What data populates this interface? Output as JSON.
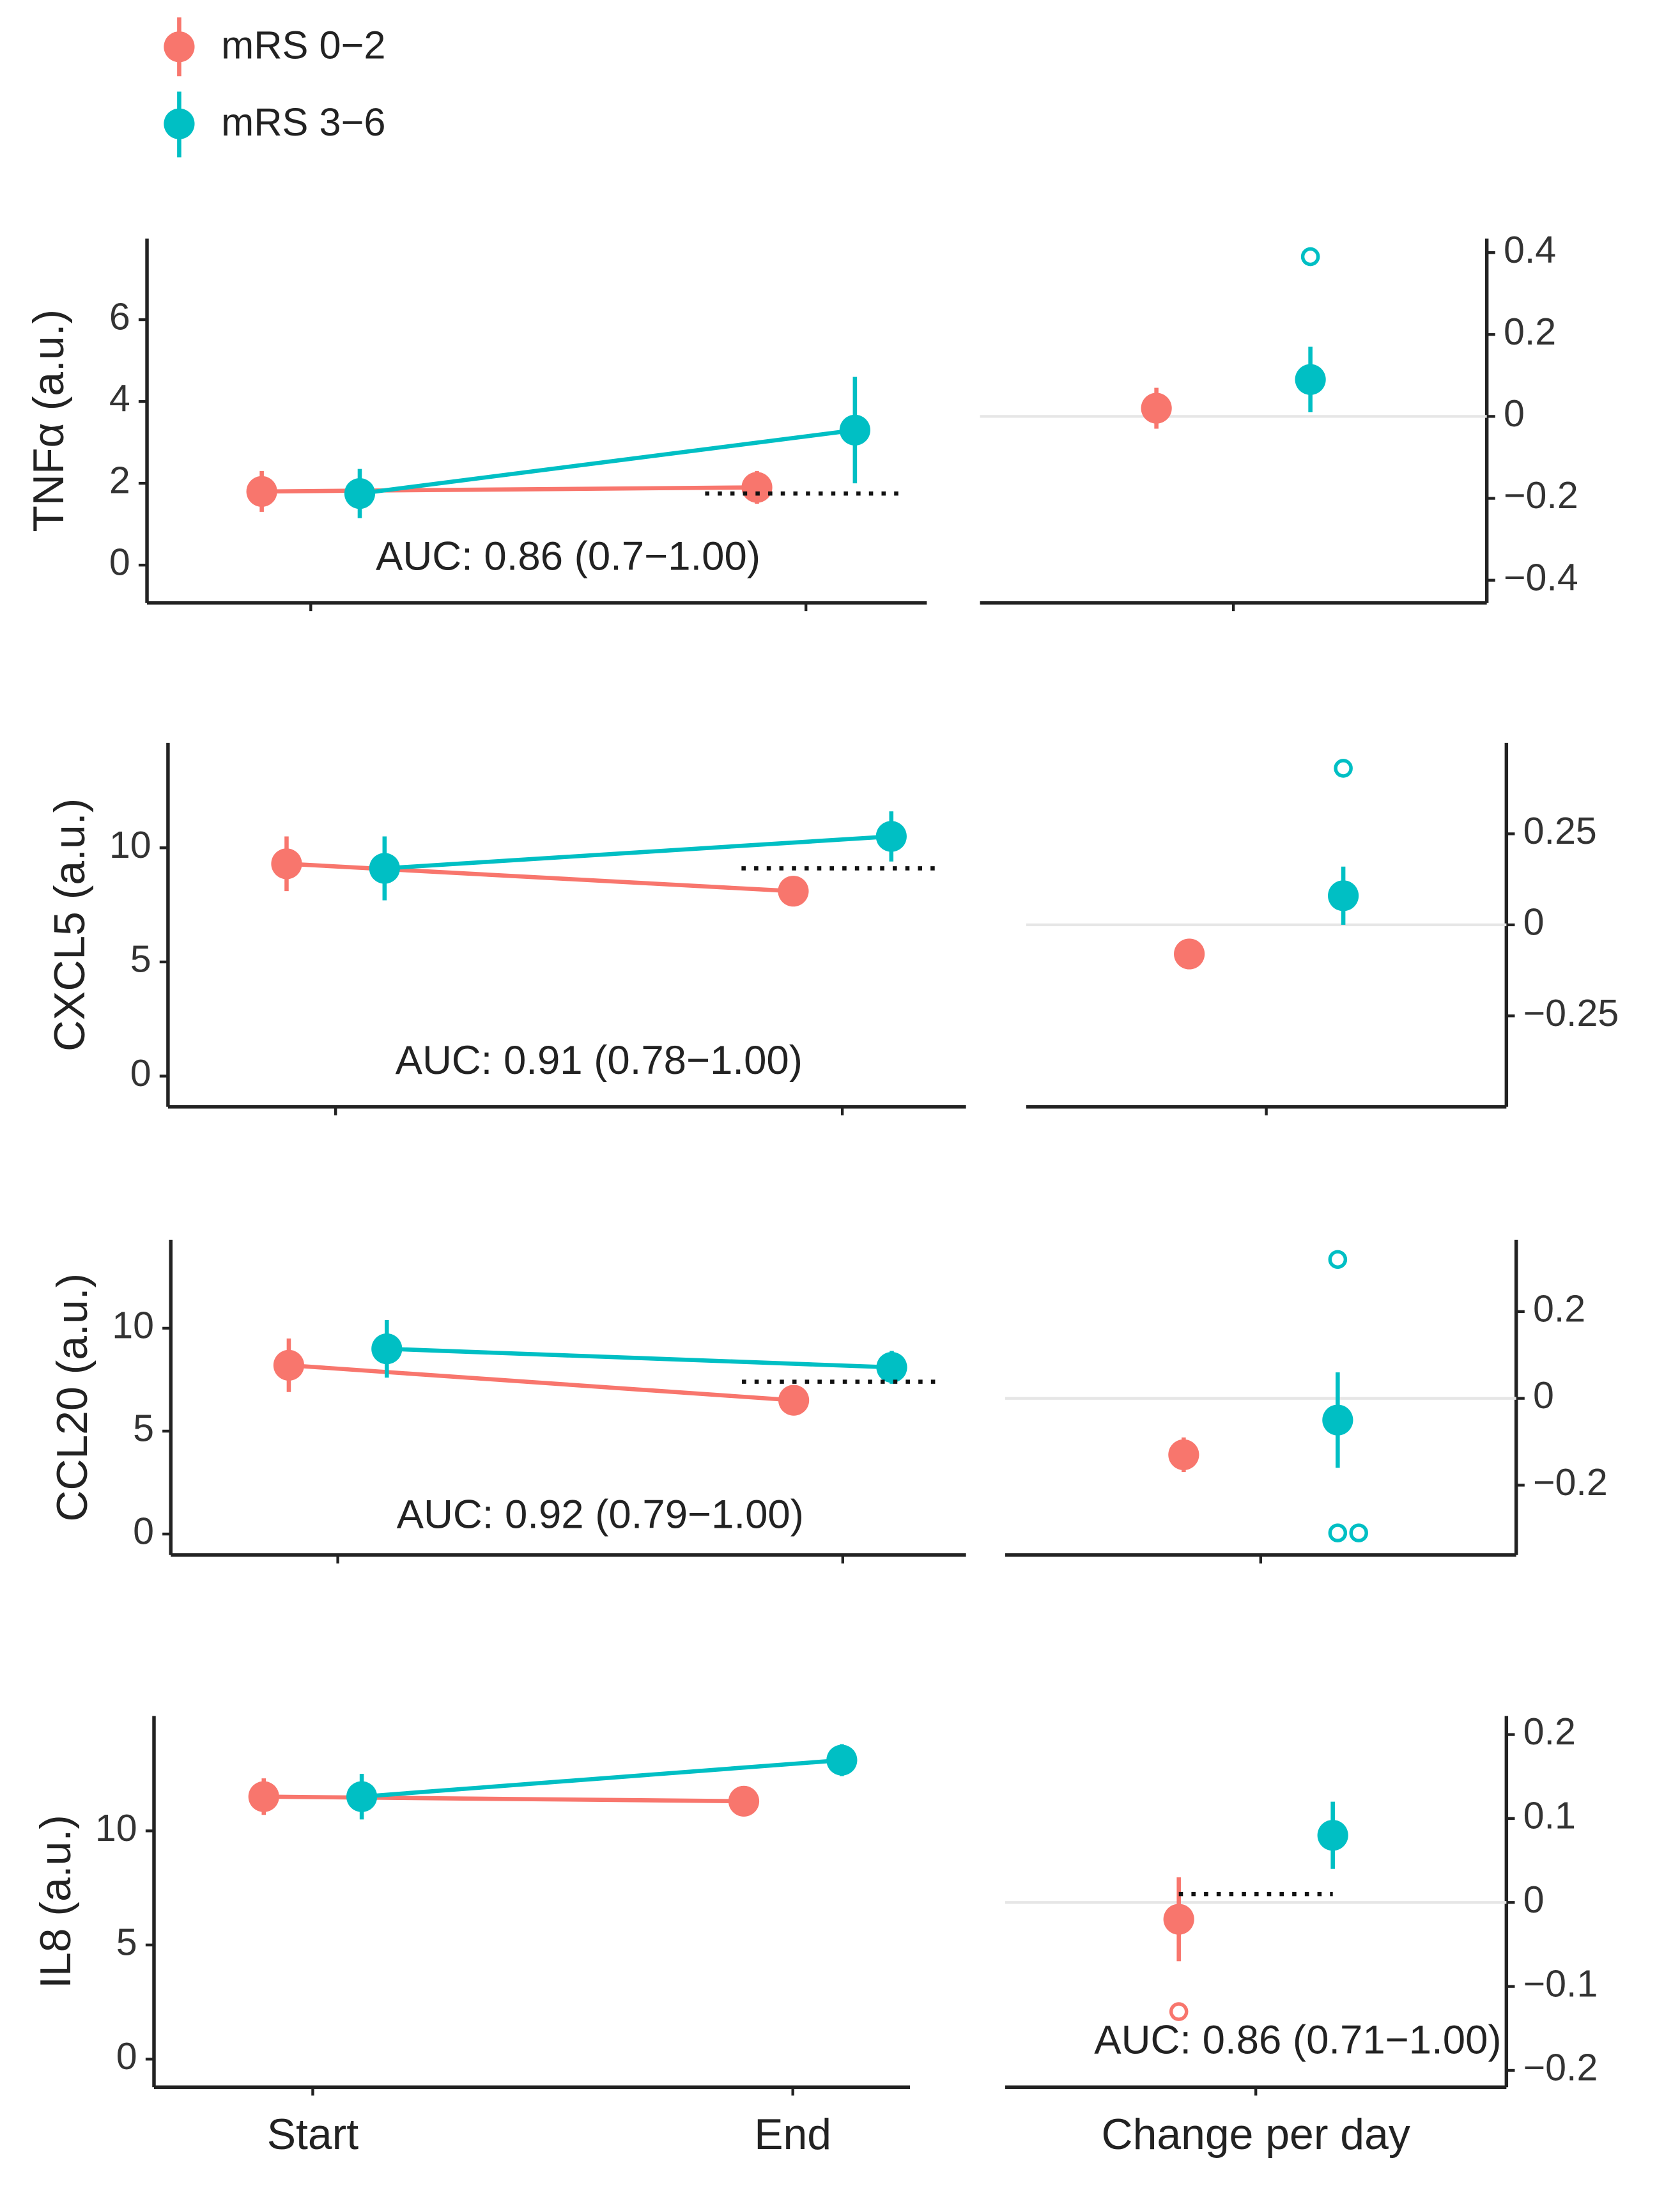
{
  "chart_data": [
    {
      "type": "line",
      "ylabel": "TNFα (a.u.)",
      "annotation": "AUC: 0.86 (0.7−1.00)",
      "categories": [
        null,
        null
      ],
      "threshold": 1.75,
      "ylim": [
        -0.92,
        7.98
      ],
      "yticks": [
        0,
        2,
        4,
        6
      ],
      "series": [
        {
          "name": "mRS 0−2",
          "color": "#f8766d",
          "values": [
            1.8,
            1.9
          ],
          "errors": [
            0.5,
            0.4
          ]
        },
        {
          "name": "mRS 3−6",
          "color": "#00bfc4",
          "values": [
            1.75,
            3.3
          ],
          "errors": [
            0.6,
            1.3
          ]
        }
      ]
    },
    {
      "type": "dot",
      "categories": [
        null
      ],
      "ylim": [
        -0.455,
        0.434
      ],
      "yticks": [
        {
          "value": -0.4,
          "label": "−0.4"
        },
        {
          "value": -0.2,
          "label": "−0.2"
        },
        0,
        0.2,
        0.4
      ],
      "series": [
        {
          "name": "mRS 0−2",
          "color": "#f8766d",
          "values": [
            0.02
          ],
          "errors": [
            0.05
          ],
          "outliers": []
        },
        {
          "name": "mRS 3−6",
          "color": "#00bfc4",
          "values": [
            0.09
          ],
          "errors": [
            0.08
          ],
          "outliers": [
            0.39
          ]
        }
      ]
    },
    {
      "type": "line",
      "ylabel": "CXCL5 (a.u.)",
      "annotation": "AUC: 0.91 (0.78−1.00)",
      "categories": [
        null,
        null
      ],
      "threshold": 9.1,
      "ylim": [
        -1.35,
        14.6
      ],
      "yticks": [
        0,
        5,
        10
      ],
      "series": [
        {
          "name": "mRS 0−2",
          "color": "#f8766d",
          "values": [
            9.3,
            8.1
          ],
          "errors": [
            1.2,
            0.6
          ]
        },
        {
          "name": "mRS 3−6",
          "color": "#00bfc4",
          "values": [
            9.1,
            10.5
          ],
          "errors": [
            1.4,
            1.1
          ]
        }
      ]
    },
    {
      "type": "dot",
      "categories": [
        null
      ],
      "ylim": [
        -0.5,
        0.5
      ],
      "yticks": [
        {
          "value": -0.25,
          "label": "−0.25"
        },
        0,
        0.25
      ],
      "series": [
        {
          "name": "mRS 0−2",
          "color": "#f8766d",
          "values": [
            -0.08
          ],
          "errors": [
            0.03
          ],
          "outliers": []
        },
        {
          "name": "mRS 3−6",
          "color": "#00bfc4",
          "values": [
            0.08
          ],
          "errors": [
            0.08
          ],
          "outliers": [
            0.43
          ]
        }
      ]
    },
    {
      "type": "line",
      "ylabel": "CCL20 (a.u.)",
      "annotation": "AUC: 0.92 (0.79−1.00)",
      "categories": [
        null,
        null
      ],
      "threshold": 7.4,
      "ylim": [
        -1.02,
        14.29
      ],
      "yticks": [
        0,
        5,
        10
      ],
      "series": [
        {
          "name": "mRS 0−2",
          "color": "#f8766d",
          "values": [
            8.2,
            6.5
          ],
          "errors": [
            1.3,
            0.5
          ]
        },
        {
          "name": "mRS 3−6",
          "color": "#00bfc4",
          "values": [
            9.0,
            8.1
          ],
          "errors": [
            1.4,
            0.8
          ]
        }
      ]
    },
    {
      "type": "dot",
      "categories": [
        null
      ],
      "ylim": [
        -0.361,
        0.365
      ],
      "yticks": [
        {
          "value": -0.2,
          "label": "−0.2"
        },
        0,
        0.2
      ],
      "series": [
        {
          "name": "mRS 0−2",
          "color": "#f8766d",
          "values": [
            -0.13
          ],
          "errors": [
            0.04
          ],
          "outliers": []
        },
        {
          "name": "mRS 3−6",
          "color": "#00bfc4",
          "values": [
            -0.05
          ],
          "errors": [
            0.11
          ],
          "outliers": [
            0.32,
            -0.31,
            -0.31
          ]
        }
      ]
    },
    {
      "type": "line",
      "ylabel": "IL8 (a.u.)",
      "categories": [
        "Start",
        "End"
      ],
      "ylim": [
        -1.23,
        15.03
      ],
      "yticks": [
        0,
        5,
        10
      ],
      "series": [
        {
          "name": "mRS 0−2",
          "color": "#f8766d",
          "values": [
            11.5,
            11.3
          ],
          "errors": [
            0.8,
            0.6
          ]
        },
        {
          "name": "mRS 3−6",
          "color": "#00bfc4",
          "values": [
            11.5,
            13.1
          ],
          "errors": [
            1.0,
            0.7
          ]
        }
      ]
    },
    {
      "type": "dot",
      "annotation": "AUC: 0.86 (0.71−1.00)",
      "categories": [
        "Change per day"
      ],
      "threshold": 0.01,
      "ylim": [
        -0.22,
        0.222
      ],
      "yticks": [
        {
          "value": -0.2,
          "label": "−0.2"
        },
        {
          "value": -0.1,
          "label": "−0.1"
        },
        0,
        0.1,
        0.2
      ],
      "series": [
        {
          "name": "mRS 0−2",
          "color": "#f8766d",
          "values": [
            -0.02
          ],
          "errors": [
            0.05
          ],
          "outliers": [
            -0.13
          ]
        },
        {
          "name": "mRS 3−6",
          "color": "#00bfc4",
          "values": [
            0.08
          ],
          "errors": [
            0.04
          ],
          "outliers": []
        }
      ]
    }
  ]
}
